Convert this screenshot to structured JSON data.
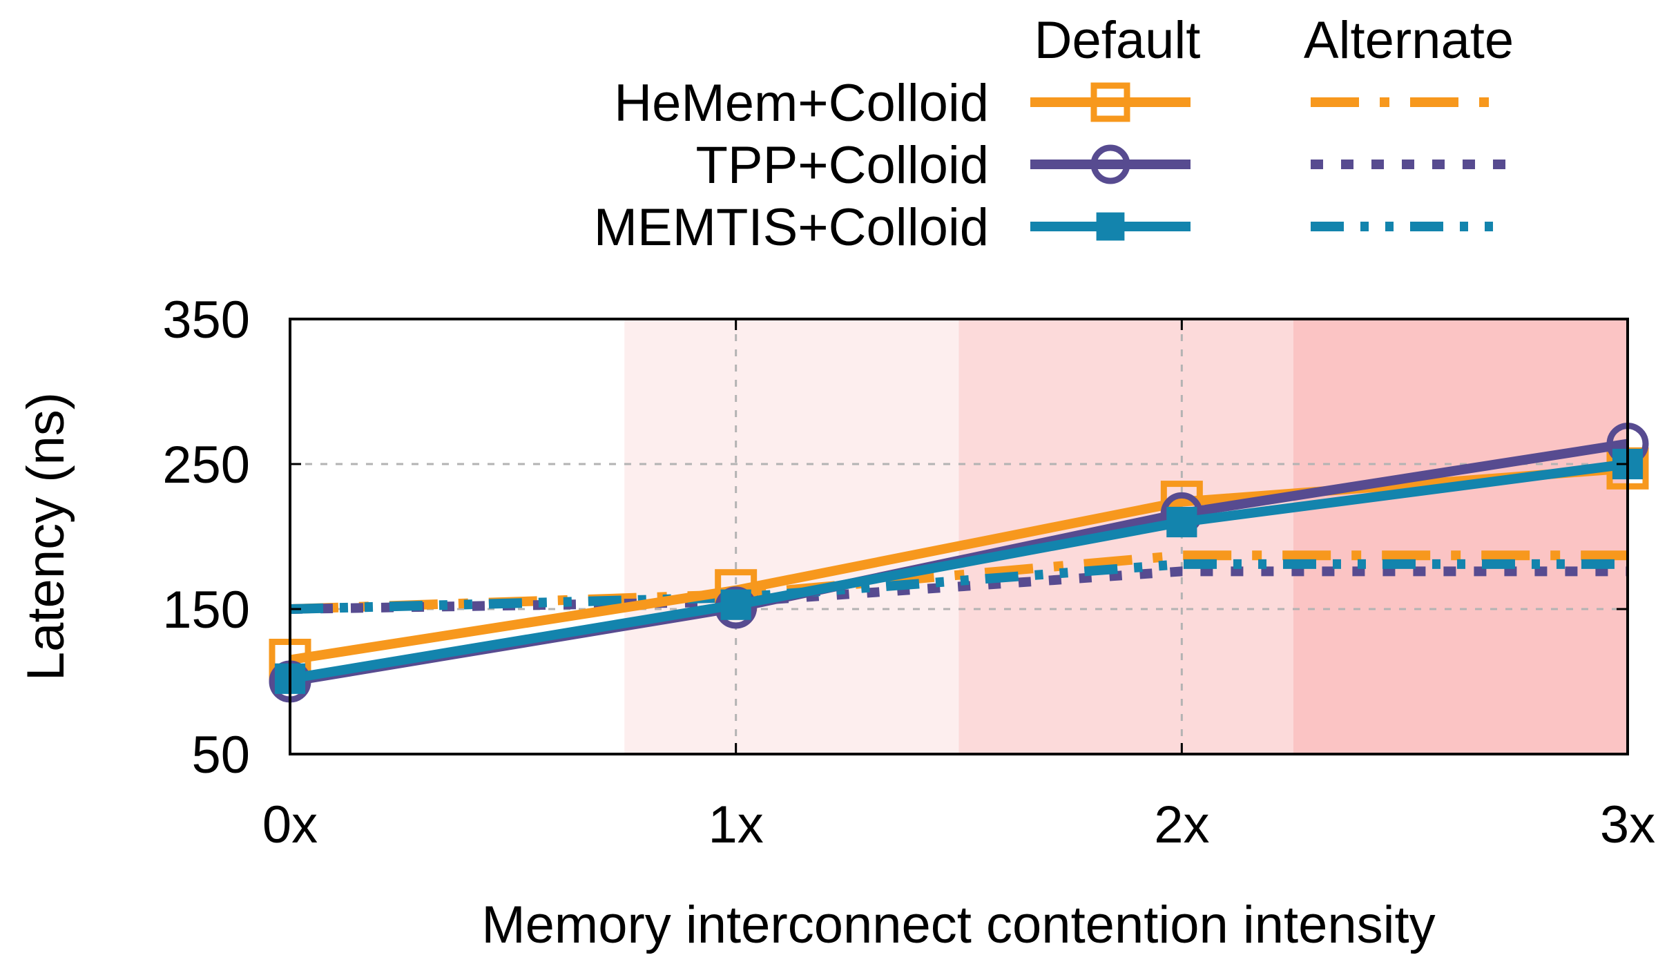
{
  "chart_data": {
    "type": "line",
    "xlabel": "Memory interconnect contention intensity",
    "ylabel": "Latency (ns)",
    "categories": [
      "0x",
      "1x",
      "2x",
      "3x"
    ],
    "x": [
      0,
      1,
      2,
      3
    ],
    "ylim": [
      50,
      350
    ],
    "yticks": [
      50,
      150,
      250,
      350
    ],
    "grid": true,
    "legend": {
      "placement": "top",
      "column_headers": [
        "Default",
        "Alternate"
      ]
    },
    "background_bands": [
      {
        "from": 0.75,
        "to": 1.5,
        "color": "#fdeeee"
      },
      {
        "from": 1.5,
        "to": 2.25,
        "color": "#fcdada"
      },
      {
        "from": 2.25,
        "to": 3.0,
        "color": "#fbc4c4"
      }
    ],
    "series": [
      {
        "name": "HeMem+Colloid",
        "variant": "Default",
        "color": "#f7981d",
        "marker": "square-open",
        "dash": "solid",
        "values": [
          115,
          163,
          224,
          247
        ]
      },
      {
        "name": "TPP+Colloid",
        "variant": "Default",
        "color": "#574b90",
        "marker": "circle-open",
        "dash": "solid",
        "values": [
          100,
          151,
          216,
          264
        ]
      },
      {
        "name": "MEMTIS+Colloid",
        "variant": "Default",
        "color": "#1384ad",
        "marker": "square-filled",
        "dash": "solid",
        "values": [
          102,
          153,
          210,
          250
        ]
      },
      {
        "name": "HeMem+Colloid",
        "variant": "Alternate",
        "color": "#f7981d",
        "marker": "none",
        "dash": "dash-dot",
        "values": [
          150,
          160,
          187,
          187
        ]
      },
      {
        "name": "TPP+Colloid",
        "variant": "Alternate",
        "color": "#574b90",
        "marker": "none",
        "dash": "dotted",
        "values": [
          150,
          155,
          176,
          176
        ]
      },
      {
        "name": "MEMTIS+Colloid",
        "variant": "Alternate",
        "color": "#1384ad",
        "marker": "none",
        "dash": "dash-dot-dot",
        "values": [
          150,
          158,
          181,
          181
        ]
      }
    ]
  }
}
